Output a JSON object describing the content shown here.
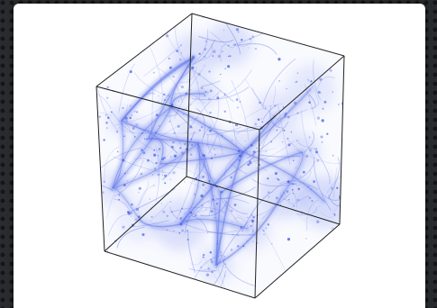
{
  "panel": {
    "background": "#ffffff",
    "page_background": "#2a2b2e"
  },
  "visualization": {
    "kind": "3d-cube-density-render",
    "icon": "cube-icon",
    "filament_color": "#3a55e6",
    "cube_edge_color": "#222222"
  }
}
